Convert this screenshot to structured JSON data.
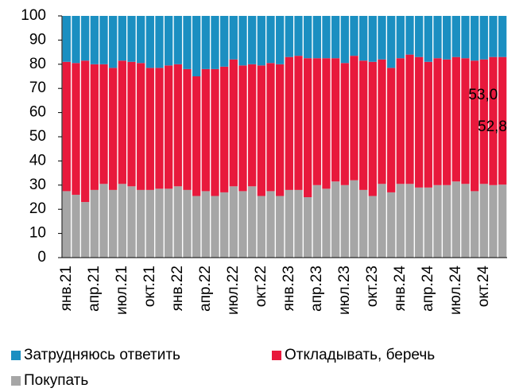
{
  "chart_data": {
    "type": "stacked_bar",
    "categories": [
      "янв.21",
      null,
      null,
      "апр.21",
      null,
      null,
      "июл.21",
      null,
      null,
      "окт.21",
      null,
      null,
      "янв.22",
      null,
      null,
      "апр.22",
      null,
      null,
      "июл.22",
      null,
      null,
      "окт.22",
      null,
      null,
      "янв.23",
      null,
      null,
      "апр.23",
      null,
      null,
      "июл.23",
      null,
      null,
      "окт.23",
      null,
      null,
      "янв.24",
      null,
      null,
      "апр.24",
      null,
      null,
      "июл.24",
      null,
      null,
      "окт.24",
      null,
      null
    ],
    "series": [
      {
        "name": "Покупать",
        "color": "#a6a6a6",
        "values": [
          27.5,
          26,
          23,
          28,
          30.5,
          28,
          30.5,
          29.5,
          28,
          28,
          28.5,
          28.5,
          29.5,
          28,
          25.5,
          27.5,
          25.5,
          27,
          29.5,
          27.5,
          29.5,
          25.5,
          27.5,
          25.5,
          28,
          28,
          25,
          30,
          28.5,
          31.5,
          30,
          32,
          28,
          25.5,
          30.5,
          27,
          30.5,
          30.5,
          29,
          29,
          30,
          30,
          31.5,
          30.5,
          27.5,
          30.5,
          30,
          30.2
        ]
      },
      {
        "name": "Откладывать, беречь",
        "color": "#e8193c",
        "values": [
          53.5,
          54.5,
          58.5,
          52,
          49.5,
          50.5,
          51,
          51.5,
          52.5,
          50.5,
          50,
          51,
          50.5,
          50,
          49.5,
          50.5,
          52.5,
          52,
          52.5,
          52,
          50.5,
          54,
          53,
          54.5,
          55,
          55.5,
          57.5,
          52.5,
          54,
          51,
          50.5,
          51.5,
          53.5,
          55.5,
          51.5,
          51.5,
          52,
          53.5,
          54,
          52,
          52.5,
          52,
          51.5,
          52,
          54,
          51.5,
          53,
          52.8
        ],
        "value_labels": [
          null,
          null,
          null,
          null,
          null,
          null,
          null,
          null,
          null,
          null,
          null,
          null,
          null,
          null,
          null,
          null,
          null,
          null,
          null,
          null,
          null,
          null,
          null,
          null,
          null,
          null,
          null,
          null,
          null,
          null,
          null,
          null,
          null,
          null,
          null,
          null,
          null,
          null,
          null,
          null,
          null,
          null,
          null,
          null,
          null,
          null,
          "53,0",
          "52,8"
        ]
      },
      {
        "name": "Затрудняюсь ответить",
        "color": "#1b8fc1",
        "values": [
          19,
          19.5,
          18.5,
          20,
          20,
          21.5,
          18.5,
          19,
          19.5,
          21.5,
          21.5,
          20.5,
          20,
          22,
          25,
          22,
          22,
          21,
          18,
          20.5,
          20,
          20.5,
          19.5,
          20,
          17,
          16.5,
          17.5,
          17.5,
          17.5,
          17.5,
          19.5,
          16.5,
          18.5,
          19,
          18,
          21.5,
          17.5,
          16,
          17,
          19,
          17.5,
          18,
          17,
          17.5,
          18.5,
          18,
          17,
          17
        ]
      }
    ],
    "ylim": [
      0,
      100
    ],
    "yticks": [
      0,
      10,
      20,
      30,
      40,
      50,
      60,
      70,
      80,
      90,
      100
    ]
  }
}
